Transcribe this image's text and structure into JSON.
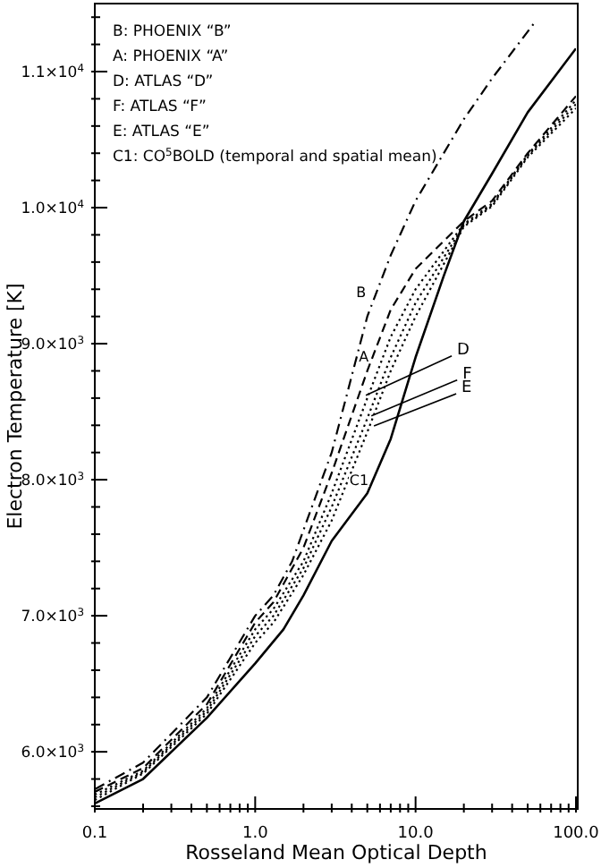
{
  "chart_data": {
    "type": "line",
    "xlabel": "Rosseland Mean Optical Depth",
    "ylabel": "Electron Temperature [K]",
    "log": "x",
    "xlim": [
      0.1,
      100
    ],
    "xticks": [
      {
        "value": 0.1,
        "label": "0.1"
      },
      {
        "value": 0.2,
        "label": null
      },
      {
        "value": 0.3,
        "label": null
      },
      {
        "value": 0.4,
        "label": null
      },
      {
        "value": 0.5,
        "label": null
      },
      {
        "value": 0.6,
        "label": null
      },
      {
        "value": 0.7,
        "label": null
      },
      {
        "value": 0.8,
        "label": null
      },
      {
        "value": 0.9,
        "label": null
      },
      {
        "value": 1,
        "label": "1.0"
      },
      {
        "value": 2,
        "label": null
      },
      {
        "value": 3,
        "label": null
      },
      {
        "value": 4,
        "label": null
      },
      {
        "value": 5,
        "label": null
      },
      {
        "value": 6,
        "label": null
      },
      {
        "value": 7,
        "label": null
      },
      {
        "value": 8,
        "label": null
      },
      {
        "value": 9,
        "label": null
      },
      {
        "value": 10,
        "label": "10.0"
      },
      {
        "value": 20,
        "label": null
      },
      {
        "value": 30,
        "label": null
      },
      {
        "value": 40,
        "label": null
      },
      {
        "value": 50,
        "label": null
      },
      {
        "value": 60,
        "label": null
      },
      {
        "value": 70,
        "label": null
      },
      {
        "value": 80,
        "label": null
      },
      {
        "value": 90,
        "label": null
      },
      {
        "value": 100,
        "label": "100.0"
      }
    ],
    "ylim": [
      5580,
      11500
    ],
    "yticks": [
      {
        "value": 5600,
        "label": null
      },
      {
        "value": 5800,
        "label": null
      },
      {
        "value": 6000,
        "label": "6.0×10$^{3}$"
      },
      {
        "value": 6200,
        "label": null
      },
      {
        "value": 6400,
        "label": null
      },
      {
        "value": 6600,
        "label": null
      },
      {
        "value": 6800,
        "label": null
      },
      {
        "value": 7000,
        "label": "7.0×10$^{3}$"
      },
      {
        "value": 7200,
        "label": null
      },
      {
        "value": 7400,
        "label": null
      },
      {
        "value": 7600,
        "label": null
      },
      {
        "value": 7800,
        "label": null
      },
      {
        "value": 8000,
        "label": "8.0×10$^{3}$"
      },
      {
        "value": 8200,
        "label": null
      },
      {
        "value": 8400,
        "label": null
      },
      {
        "value": 8600,
        "label": null
      },
      {
        "value": 8800,
        "label": null
      },
      {
        "value": 9000,
        "label": "9.0×10$^{3}$"
      },
      {
        "value": 9200,
        "label": null
      },
      {
        "value": 9400,
        "label": null
      },
      {
        "value": 9600,
        "label": null
      },
      {
        "value": 9800,
        "label": null
      },
      {
        "value": 10000,
        "label": "1.0×10$^{4}$"
      },
      {
        "value": 10200,
        "label": null
      },
      {
        "value": 10400,
        "label": null
      },
      {
        "value": 10600,
        "label": null
      },
      {
        "value": 10800,
        "label": null
      },
      {
        "value": 11000,
        "label": "1.1×10$^{4}$"
      },
      {
        "value": 11200,
        "label": null
      },
      {
        "value": 11400,
        "label": null
      }
    ],
    "grid": false,
    "series": [
      {
        "color": "#000000",
        "line_style": "dashdot",
        "x": [
          0.1,
          0.2,
          0.5,
          1,
          1.3,
          1.7,
          2.6,
          3,
          5,
          7,
          10,
          20,
          30,
          56
        ],
        "values": [
          5725,
          5920,
          6400,
          7000,
          7150,
          7400,
          8000,
          8200,
          9200,
          9650,
          10050,
          10650,
          10950,
          11370
        ]
      },
      {
        "color": "#000000",
        "line_style": "dashed",
        "x": [
          0.1,
          0.2,
          0.5,
          1,
          1.3,
          2,
          3,
          5,
          7,
          10,
          20,
          30,
          50,
          100
        ],
        "values": [
          5705,
          5880,
          6350,
          6950,
          7100,
          7500,
          8050,
          8800,
          9250,
          9550,
          9900,
          10050,
          10400,
          10820
        ]
      },
      {
        "color": "#000000",
        "line_style": "dotted",
        "x": [
          0.1,
          0.2,
          0.5,
          1,
          1.3,
          2,
          3,
          5,
          7,
          10,
          20,
          30,
          50,
          100
        ],
        "values": [
          5685,
          5860,
          6320,
          6900,
          7050,
          7400,
          7900,
          8600,
          9050,
          9400,
          9880,
          10030,
          10390,
          10790
        ]
      },
      {
        "color": "#000000",
        "line_style": "dotted",
        "x": [
          0.1,
          0.2,
          0.5,
          1,
          1.3,
          2,
          3,
          5,
          7,
          10,
          20,
          30,
          50,
          100
        ],
        "values": [
          5665,
          5850,
          6300,
          6850,
          7000,
          7350,
          7800,
          8450,
          8900,
          9300,
          9870,
          10020,
          10380,
          10760
        ]
      },
      {
        "color": "#000000",
        "line_style": "dotted",
        "x": [
          0.1,
          0.2,
          0.5,
          1,
          1.3,
          2,
          3,
          5,
          7,
          10,
          20,
          30,
          50,
          100
        ],
        "values": [
          5645,
          5840,
          6280,
          6800,
          6950,
          7300,
          7700,
          8350,
          8800,
          9200,
          9860,
          10010,
          10370,
          10730
        ]
      },
      {
        "color": "#000000",
        "line_style": "solid",
        "x": [
          0.1,
          0.2,
          0.5,
          1,
          1.5,
          2,
          3,
          5,
          7,
          10,
          15,
          20,
          30,
          50,
          100
        ],
        "values": [
          5620,
          5800,
          6250,
          6650,
          6900,
          7150,
          7550,
          7900,
          8300,
          8900,
          9500,
          9900,
          10250,
          10700,
          11170
        ]
      }
    ],
    "annotations": [
      "B: PHOENIX “B”",
      "A: PHOENIX “A”",
      "D: ATLAS “D”",
      "F:  ATLAS “F”",
      "E:  ATLAS “E”",
      "C1: CO$^{5}$BOLD (temporal and spatial mean)",
      {
        "text": "B",
        "x": 5.3,
        "y": 9380
      },
      {
        "text": "A",
        "x": 5.5,
        "y": 8910
      },
      {
        "text": "C1",
        "x": 5.5,
        "y": 8000
      },
      {
        "text": "D",
        "x": 4.9,
        "y": 8620
      },
      {
        "text": "F",
        "x": 5.3,
        "y": 8470
      },
      {
        "text": "E",
        "x": 5.5,
        "y": 8395
      }
    ]
  }
}
